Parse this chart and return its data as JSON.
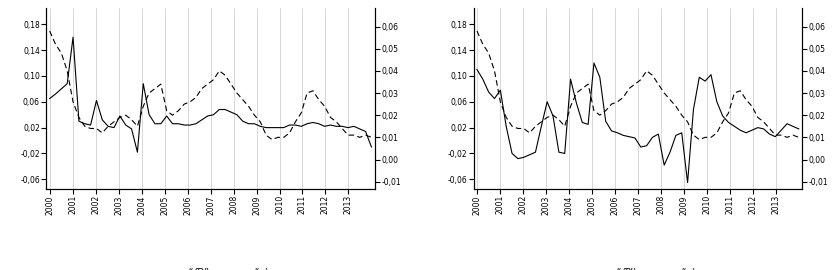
{
  "left_ylim": [
    -0.075,
    0.205
  ],
  "right_ylim": [
    -0.0133,
    0.0683
  ],
  "left_yticks": [
    -0.06,
    -0.02,
    0.02,
    0.06,
    0.1,
    0.14,
    0.18
  ],
  "right_yticks": [
    -0.01,
    0.0,
    0.01,
    0.02,
    0.03,
    0.04,
    0.05,
    0.06
  ],
  "background": "#ffffff",
  "grid_color": "#c8c8c8",
  "fdi": [
    0.065,
    0.072,
    0.08,
    0.088,
    0.16,
    0.03,
    0.026,
    0.024,
    0.062,
    0.032,
    0.022,
    0.02,
    0.038,
    0.024,
    0.018,
    -0.018,
    0.088,
    0.04,
    0.026,
    0.026,
    0.038,
    0.026,
    0.026,
    0.024,
    0.024,
    0.026,
    0.032,
    0.038,
    0.04,
    0.048,
    0.048,
    0.044,
    0.04,
    0.03,
    0.026,
    0.026,
    0.022,
    0.02,
    0.02,
    0.02,
    0.02,
    0.024,
    0.024,
    0.022,
    0.026,
    0.028,
    0.026,
    0.022,
    0.024,
    0.022,
    0.022,
    0.02,
    0.022,
    0.018,
    0.014,
    -0.01
  ],
  "fpi": [
    0.11,
    0.095,
    0.075,
    0.065,
    0.078,
    0.022,
    -0.02,
    -0.028,
    -0.026,
    -0.022,
    -0.018,
    0.022,
    0.06,
    0.038,
    -0.018,
    -0.02,
    0.095,
    0.058,
    0.028,
    0.025,
    0.12,
    0.098,
    0.03,
    0.015,
    0.012,
    0.008,
    0.006,
    0.004,
    -0.01,
    -0.008,
    0.005,
    0.01,
    -0.038,
    -0.018,
    0.008,
    0.012,
    -0.065,
    0.048,
    0.098,
    0.092,
    0.102,
    0.06,
    0.038,
    0.028,
    0.022,
    0.016,
    0.012,
    0.016,
    0.02,
    0.018,
    0.01,
    0.006,
    0.016,
    0.026,
    0.022,
    0.018
  ],
  "gdp": [
    0.058,
    0.052,
    0.048,
    0.04,
    0.026,
    0.019,
    0.015,
    0.014,
    0.014,
    0.012,
    0.015,
    0.017,
    0.019,
    0.02,
    0.018,
    0.015,
    0.024,
    0.03,
    0.032,
    0.034,
    0.022,
    0.02,
    0.022,
    0.025,
    0.026,
    0.028,
    0.032,
    0.034,
    0.036,
    0.04,
    0.038,
    0.034,
    0.03,
    0.027,
    0.024,
    0.02,
    0.017,
    0.011,
    0.009,
    0.01,
    0.01,
    0.012,
    0.017,
    0.021,
    0.03,
    0.031,
    0.027,
    0.024,
    0.019,
    0.017,
    0.014,
    0.011,
    0.011,
    0.01,
    0.011,
    0.01
  ]
}
